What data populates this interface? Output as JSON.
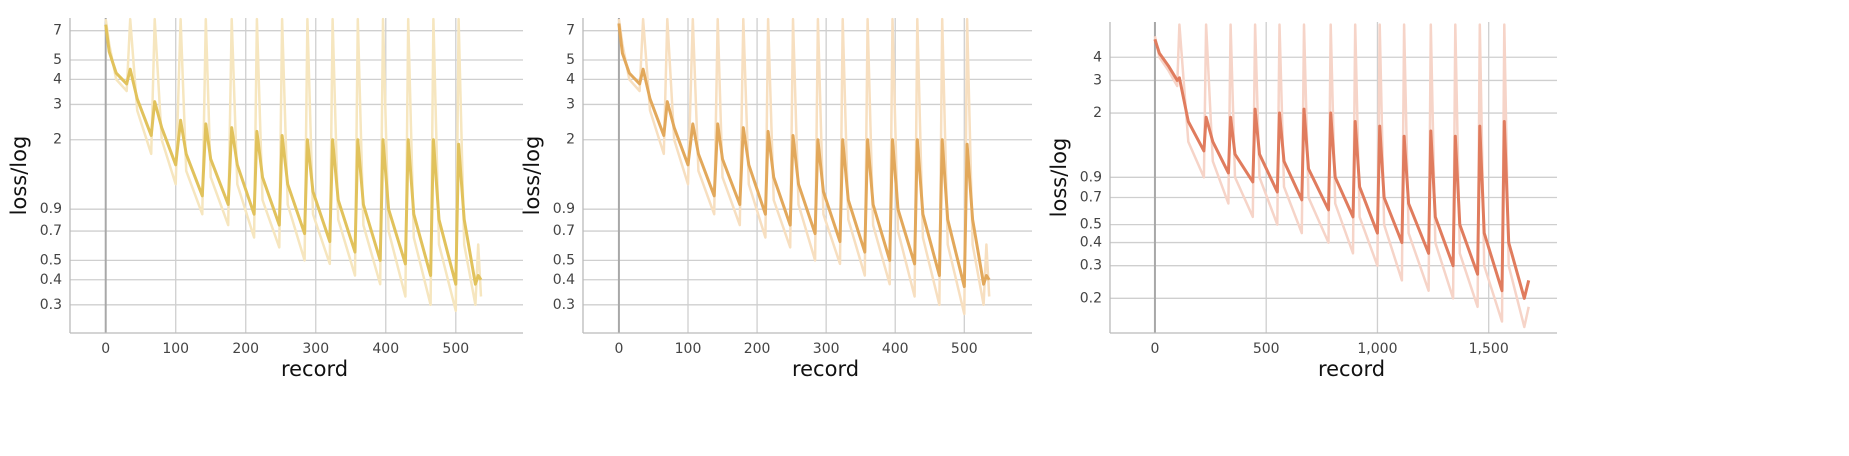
{
  "chart_data": [
    {
      "type": "line",
      "log_y": true,
      "grid": true,
      "x_label": "record",
      "y_label": "loss/log",
      "x": [
        0,
        5,
        15,
        30,
        35,
        45,
        65,
        70,
        80,
        100,
        107,
        115,
        138,
        143,
        150,
        175,
        180,
        188,
        212,
        216,
        224,
        248,
        252,
        260,
        284,
        288,
        296,
        320,
        324,
        332,
        356,
        360,
        368,
        392,
        396,
        404,
        428,
        432,
        440,
        464,
        468,
        476,
        500,
        504,
        512,
        528,
        532,
        536
      ],
      "series": [
        {
          "color": "#f6e6bf",
          "values": [
            8,
            6,
            4,
            3.5,
            8,
            2.8,
            1.7,
            8,
            2.0,
            1.2,
            8,
            1.4,
            0.85,
            8,
            1.3,
            0.75,
            8,
            1.2,
            0.65,
            8,
            1.0,
            0.58,
            8,
            0.95,
            0.5,
            8,
            0.85,
            0.48,
            8,
            0.8,
            0.42,
            8,
            0.75,
            0.38,
            8,
            0.7,
            0.33,
            8,
            0.65,
            0.3,
            8,
            0.6,
            0.28,
            8,
            0.6,
            0.3,
            0.6,
            0.33
          ]
        },
        {
          "color": "#e1c25c",
          "values": [
            7.5,
            5.5,
            4.3,
            3.8,
            4.5,
            3.2,
            2.1,
            3.1,
            2.3,
            1.5,
            2.5,
            1.7,
            1.05,
            2.4,
            1.6,
            0.95,
            2.3,
            1.5,
            0.85,
            2.2,
            1.3,
            0.75,
            2.1,
            1.2,
            0.68,
            2.0,
            1.1,
            0.62,
            2.0,
            1.0,
            0.55,
            2.0,
            0.95,
            0.5,
            2.0,
            0.9,
            0.48,
            2.0,
            0.85,
            0.42,
            2.0,
            0.8,
            0.38,
            1.9,
            0.8,
            0.38,
            0.42,
            0.4
          ]
        }
      ],
      "xlim": [
        -51,
        596
      ],
      "xticks": [
        0,
        100,
        200,
        300,
        400,
        500
      ],
      "ylim": [
        0.217,
        8.1
      ],
      "yticks": [
        0.3,
        0.4,
        0.5,
        0.7,
        0.9,
        2,
        3,
        4,
        5,
        7
      ]
    },
    {
      "type": "line",
      "log_y": true,
      "grid": true,
      "x_label": "record",
      "y_label": "loss/log",
      "x": [
        0,
        5,
        15,
        30,
        35,
        45,
        65,
        70,
        80,
        100,
        107,
        115,
        138,
        143,
        150,
        175,
        180,
        188,
        212,
        216,
        224,
        248,
        252,
        260,
        284,
        288,
        296,
        320,
        324,
        332,
        356,
        360,
        368,
        392,
        396,
        404,
        428,
        432,
        440,
        464,
        468,
        476,
        500,
        504,
        512,
        528,
        532,
        536
      ],
      "series": [
        {
          "color": "#f7dfc0",
          "values": [
            8,
            6,
            4,
            3.5,
            8,
            2.8,
            1.7,
            8,
            2.0,
            1.2,
            8,
            1.4,
            0.85,
            8,
            1.3,
            0.75,
            8,
            1.2,
            0.65,
            8,
            1.0,
            0.58,
            8,
            0.95,
            0.5,
            8,
            0.85,
            0.48,
            8,
            0.8,
            0.42,
            8,
            0.75,
            0.38,
            8,
            0.7,
            0.33,
            8,
            0.65,
            0.3,
            8,
            0.6,
            0.27,
            8,
            0.6,
            0.3,
            0.6,
            0.33
          ]
        },
        {
          "color": "#e2a85b",
          "values": [
            7.6,
            5.4,
            4.3,
            3.8,
            4.5,
            3.2,
            2.1,
            3.1,
            2.3,
            1.5,
            2.4,
            1.7,
            1.05,
            2.4,
            1.6,
            0.95,
            2.3,
            1.5,
            0.85,
            2.2,
            1.3,
            0.75,
            2.1,
            1.2,
            0.68,
            2.0,
            1.1,
            0.62,
            2.0,
            1.0,
            0.55,
            2.0,
            0.95,
            0.5,
            2.0,
            0.9,
            0.48,
            2.0,
            0.85,
            0.42,
            2.0,
            0.8,
            0.37,
            1.9,
            0.8,
            0.38,
            0.42,
            0.4
          ]
        }
      ],
      "xlim": [
        -52,
        598
      ],
      "xticks": [
        0,
        100,
        200,
        300,
        400,
        500
      ],
      "ylim": [
        0.217,
        8.1
      ],
      "yticks": [
        0.3,
        0.4,
        0.5,
        0.7,
        0.9,
        2,
        3,
        4,
        5,
        7
      ]
    },
    {
      "type": "line",
      "log_y": true,
      "grid": true,
      "x_label": "record",
      "y_label": "loss/log",
      "x": [
        0,
        20,
        60,
        100,
        110,
        150,
        220,
        230,
        260,
        330,
        340,
        360,
        440,
        450,
        470,
        550,
        560,
        580,
        660,
        670,
        690,
        780,
        790,
        810,
        890,
        900,
        920,
        1000,
        1010,
        1030,
        1110,
        1120,
        1140,
        1230,
        1240,
        1260,
        1340,
        1350,
        1370,
        1450,
        1460,
        1480,
        1560,
        1570,
        1590,
        1660,
        1680
      ],
      "series": [
        {
          "color": "#f6d4c8",
          "values": [
            5.2,
            4.0,
            3.4,
            2.8,
            6,
            1.4,
            0.9,
            6,
            1.1,
            0.65,
            6,
            0.9,
            0.55,
            6,
            0.9,
            0.5,
            6,
            0.8,
            0.45,
            6,
            0.7,
            0.4,
            6,
            0.65,
            0.35,
            6,
            0.55,
            0.3,
            6,
            0.5,
            0.25,
            6,
            0.45,
            0.22,
            6,
            0.4,
            0.2,
            6,
            0.35,
            0.18,
            6,
            0.3,
            0.15,
            6,
            0.3,
            0.14,
            0.18
          ]
        },
        {
          "color": "#e07c5e",
          "values": [
            5.0,
            4.2,
            3.6,
            3.0,
            3.1,
            1.8,
            1.25,
            1.9,
            1.4,
            0.95,
            1.9,
            1.2,
            0.85,
            2.1,
            1.2,
            0.75,
            2.0,
            1.1,
            0.68,
            2.1,
            1.0,
            0.6,
            2.0,
            0.9,
            0.55,
            1.8,
            0.8,
            0.45,
            1.7,
            0.7,
            0.4,
            1.5,
            0.65,
            0.35,
            1.6,
            0.55,
            0.3,
            1.5,
            0.5,
            0.27,
            1.7,
            0.45,
            0.22,
            1.8,
            0.4,
            0.2,
            0.25
          ]
        }
      ],
      "xlim": [
        -202,
        1807
      ],
      "xticks": [
        0,
        500,
        {
          "value": 1000,
          "label": "1,000"
        },
        {
          "value": 1500,
          "label": "1,500"
        }
      ],
      "ylim": [
        0.13,
        6.2
      ],
      "yticks": [
        0.2,
        0.3,
        0.4,
        0.5,
        0.7,
        0.9,
        2,
        3,
        4
      ]
    }
  ]
}
